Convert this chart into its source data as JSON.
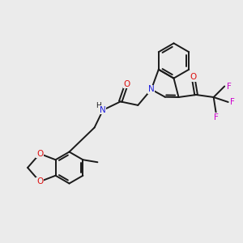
{
  "bg_color": "#ebebeb",
  "bond_color": "#1a1a1a",
  "N_color": "#2020dd",
  "O_color": "#dd1010",
  "F_color": "#cc00cc",
  "lw": 1.4,
  "figsize": [
    3.0,
    3.0
  ],
  "dpi": 100,
  "xlim": [
    0,
    10
  ],
  "ylim": [
    0,
    10
  ]
}
